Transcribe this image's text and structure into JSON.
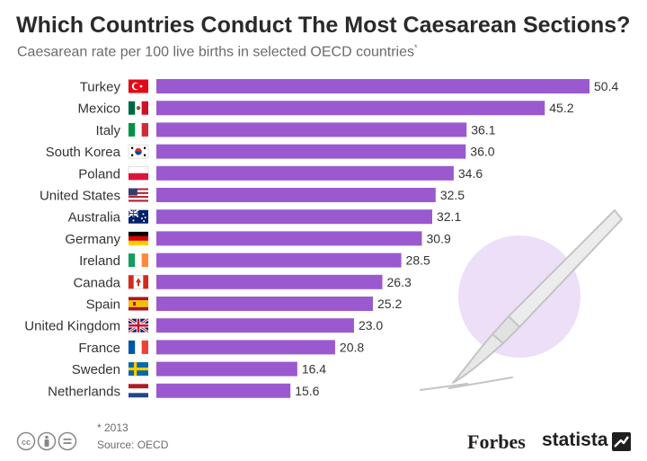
{
  "header": {
    "title": "Which Countries Conduct The Most Caesarean Sections?",
    "subtitle": "Caesarean rate per 100 live births in selected OECD countries",
    "subtitle_marker": "*"
  },
  "chart_data": {
    "type": "bar",
    "orientation": "horizontal",
    "title": "Which Countries Conduct The Most Caesarean Sections?",
    "subtitle": "Caesarean rate per 100 live births in selected OECD countries",
    "categories": [
      "Turkey",
      "Mexico",
      "Italy",
      "South Korea",
      "Poland",
      "United States",
      "Australia",
      "Germany",
      "Ireland",
      "Canada",
      "Spain",
      "United Kingdom",
      "France",
      "Sweden",
      "Netherlands"
    ],
    "values": [
      50.4,
      45.2,
      36.1,
      36.0,
      34.6,
      32.5,
      32.1,
      30.9,
      28.5,
      26.3,
      25.2,
      23.0,
      20.8,
      16.4,
      15.6
    ],
    "value_labels": [
      "50.4",
      "45.2",
      "36.1",
      "36.0",
      "34.6",
      "32.5",
      "32.1",
      "30.9",
      "28.5",
      "26.3",
      "25.2",
      "23.0",
      "20.8",
      "16.4",
      "15.6"
    ],
    "xlim": [
      0,
      50.4
    ],
    "grid": false,
    "legend": "none",
    "bar_color": "#9b59d0",
    "flags": [
      "turkey-flag-icon",
      "mexico-flag-icon",
      "italy-flag-icon",
      "south-korea-flag-icon",
      "poland-flag-icon",
      "united-states-flag-icon",
      "australia-flag-icon",
      "germany-flag-icon",
      "ireland-flag-icon",
      "canada-flag-icon",
      "spain-flag-icon",
      "united-kingdom-flag-icon",
      "france-flag-icon",
      "sweden-flag-icon",
      "netherlands-flag-icon"
    ]
  },
  "footer": {
    "note": "* 2013",
    "source": "Source: OECD",
    "brand_forbes": "Forbes",
    "brand_statista": "statista",
    "license_icons": [
      "cc-icon",
      "attribution-icon",
      "no-derivatives-icon"
    ]
  },
  "colors": {
    "bar": "#9b59d0",
    "decoration_circle": "#ecdff7",
    "title": "#2a2a2a",
    "subtitle": "#6b6b6b"
  }
}
